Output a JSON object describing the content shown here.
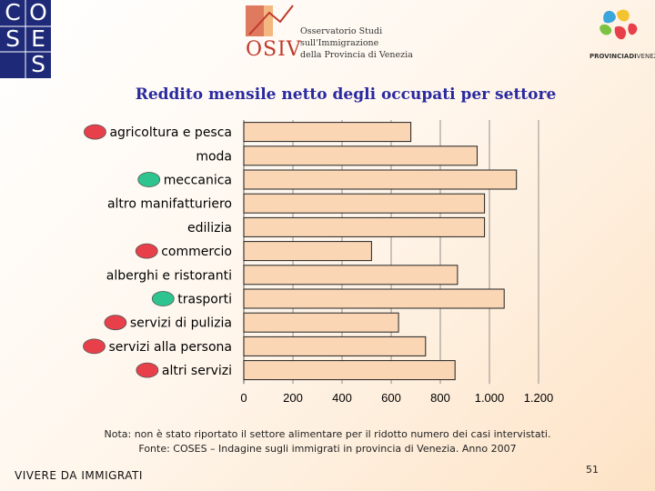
{
  "header": {
    "coses_letters": [
      "C",
      "O",
      "S",
      "E",
      "S"
    ],
    "osiv_word": "OSIV",
    "osiv_lines": [
      "Osservatorio Studi",
      "sull'Immigrazione",
      "della Provincia di Venezia"
    ],
    "provincia_bold": "PROVINCIADI",
    "provincia_normal": "VENEZIA"
  },
  "chart_data": {
    "type": "bar",
    "orientation": "horizontal",
    "title": "Reddito mensile netto degli occupati per settore",
    "categories": [
      "agricoltura e pesca",
      "moda",
      "meccanica",
      "altro manifatturiero",
      "edilizia",
      "commercio",
      "alberghi e ristoranti",
      "trasporti",
      "servizi di pulizia",
      "servizi alla persona",
      "altri servizi"
    ],
    "values": [
      680,
      950,
      1110,
      980,
      980,
      520,
      870,
      1060,
      630,
      740,
      860
    ],
    "marker_colors": [
      "#e8404a",
      "",
      "#2ec48f",
      "",
      "",
      "#e8404a",
      "",
      "#2ec48f",
      "#e8404a",
      "#e8404a",
      "#e8404a"
    ],
    "xlim": [
      0,
      1200
    ],
    "x_ticks": [
      0,
      200,
      400,
      600,
      800,
      1000,
      1200
    ],
    "x_tick_labels": [
      "0",
      "200",
      "400",
      "600",
      "800",
      "1.000",
      "1.200"
    ],
    "grid": "vertical",
    "bar_color": "#fad6b5",
    "bar_border": "#222222",
    "grid_color": "#777777"
  },
  "note": "Nota: non è stato riportato il settore alimentare per il ridotto numero dei casi intervistati.",
  "source": "Fonte: COSES – Indagine sugli immigrati in provincia di Venezia. Anno 2007",
  "footer": {
    "section": "VIVERE DA IMMIGRATI",
    "page": "51"
  }
}
